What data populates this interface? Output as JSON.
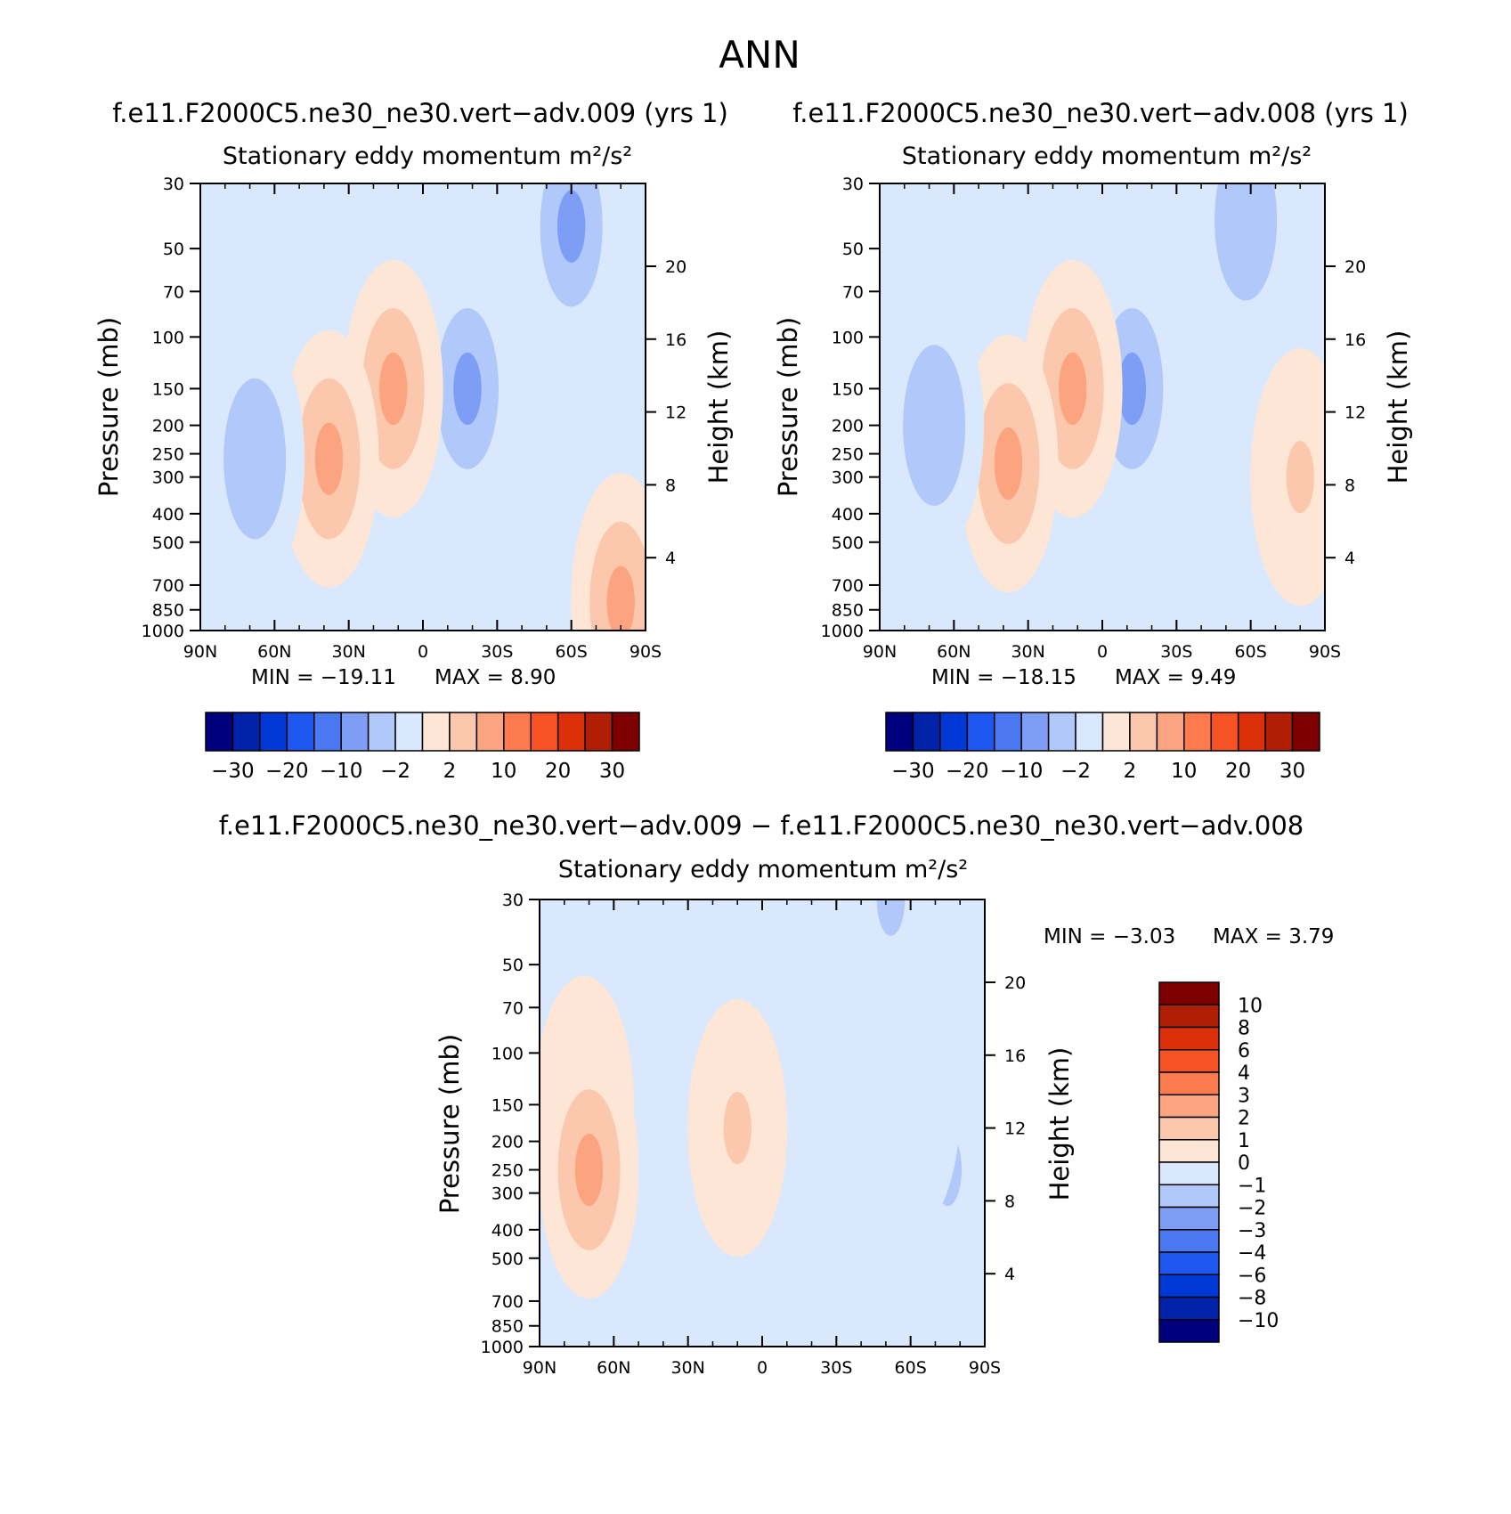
{
  "page_title": "ANN",
  "chart_data": [
    {
      "type": "heatmap",
      "panel_title": "f.e11.F2000C5.ne30_ne30.vert−adv.009 (yrs 1)",
      "subtitle": "Stationary eddy momentum  m²/s²",
      "xlabel": "",
      "ylabel": "Pressure (mb)",
      "y2label": "Height (km)",
      "x_ticks": [
        "90N",
        "60N",
        "30N",
        "0",
        "30S",
        "60S",
        "90S"
      ],
      "x_values": [
        90,
        60,
        30,
        0,
        -30,
        -60,
        -90
      ],
      "y_ticks": [
        "30",
        "50",
        "70",
        "100",
        "150",
        "200",
        "250",
        "300",
        "400",
        "500",
        "700",
        "850",
        "1000"
      ],
      "y_values": [
        30,
        50,
        70,
        100,
        150,
        200,
        250,
        300,
        400,
        500,
        700,
        850,
        1000
      ],
      "y_scale": "log",
      "ylim": [
        1000,
        30
      ],
      "y2_ticks": [
        "4",
        "8",
        "12",
        "16",
        "20"
      ],
      "y2_values": [
        4,
        8,
        12,
        16,
        20
      ],
      "min_label": "MIN =  −19.11",
      "max_label": "MAX =     8.90",
      "min": -19.11,
      "max": 8.9,
      "colorbar": {
        "orientation": "horizontal",
        "tick_labels": [
          "−30",
          "−20",
          "−10",
          "−2",
          "2",
          "10",
          "20",
          "30"
        ],
        "levels": [
          -35,
          -30,
          -25,
          -20,
          -15,
          -10,
          -5,
          -2,
          0,
          2,
          5,
          10,
          15,
          20,
          25,
          30,
          35
        ],
        "colors": [
          "#00007e",
          "#0022a8",
          "#0038d6",
          "#1e56f0",
          "#4a78f0",
          "#7e9ef5",
          "#b0c8fa",
          "#d9e8fc",
          "#fde6d6",
          "#fcc8ad",
          "#fba47f",
          "#fb7b4e",
          "#f65224",
          "#dc300a",
          "#b01e04",
          "#7e0000"
        ]
      },
      "features": [
        {
          "lat": -60,
          "p": 42,
          "value": -10
        },
        {
          "lat": -18,
          "p": 150,
          "value": -10
        },
        {
          "lat": 12,
          "p": 150,
          "value": 5
        },
        {
          "lat": 38,
          "p": 260,
          "value": 5
        },
        {
          "lat": 68,
          "p": 260,
          "value": -5
        },
        {
          "lat": -80,
          "p": 800,
          "value": 5
        }
      ]
    },
    {
      "type": "heatmap",
      "panel_title": "f.e11.F2000C5.ne30_ne30.vert−adv.008 (yrs 1)",
      "subtitle": "Stationary eddy momentum  m²/s²",
      "xlabel": "",
      "ylabel": "Pressure (mb)",
      "y2label": "Height (km)",
      "x_ticks": [
        "90N",
        "60N",
        "30N",
        "0",
        "30S",
        "60S",
        "90S"
      ],
      "x_values": [
        90,
        60,
        30,
        0,
        -30,
        -60,
        -90
      ],
      "y_ticks": [
        "30",
        "50",
        "70",
        "100",
        "150",
        "200",
        "250",
        "300",
        "400",
        "500",
        "700",
        "850",
        "1000"
      ],
      "y_values": [
        30,
        50,
        70,
        100,
        150,
        200,
        250,
        300,
        400,
        500,
        700,
        850,
        1000
      ],
      "y_scale": "log",
      "ylim": [
        1000,
        30
      ],
      "y2_ticks": [
        "4",
        "8",
        "12",
        "16",
        "20"
      ],
      "y2_values": [
        4,
        8,
        12,
        16,
        20
      ],
      "min_label": "MIN =  −18.15",
      "max_label": "MAX =     9.49",
      "min": -18.15,
      "max": 9.49,
      "colorbar": {
        "orientation": "horizontal",
        "tick_labels": [
          "−30",
          "−20",
          "−10",
          "−2",
          "2",
          "10",
          "20",
          "30"
        ],
        "levels": [
          -35,
          -30,
          -25,
          -20,
          -15,
          -10,
          -5,
          -2,
          0,
          2,
          5,
          10,
          15,
          20,
          25,
          30,
          35
        ],
        "colors": [
          "#00007e",
          "#0022a8",
          "#0038d6",
          "#1e56f0",
          "#4a78f0",
          "#7e9ef5",
          "#b0c8fa",
          "#d9e8fc",
          "#fde6d6",
          "#fcc8ad",
          "#fba47f",
          "#fb7b4e",
          "#f65224",
          "#dc300a",
          "#b01e04",
          "#7e0000"
        ]
      },
      "features": [
        {
          "lat": -58,
          "p": 40,
          "value": -5
        },
        {
          "lat": -12,
          "p": 150,
          "value": -10
        },
        {
          "lat": 12,
          "p": 150,
          "value": 5
        },
        {
          "lat": 38,
          "p": 270,
          "value": 5
        },
        {
          "lat": 68,
          "p": 200,
          "value": -5
        },
        {
          "lat": -80,
          "p": 300,
          "value": 2
        }
      ]
    },
    {
      "type": "heatmap",
      "panel_title": "f.e11.F2000C5.ne30_ne30.vert−adv.009 − f.e11.F2000C5.ne30_ne30.vert−adv.008",
      "subtitle": "Stationary eddy momentum  m²/s²",
      "xlabel": "",
      "ylabel": "Pressure (mb)",
      "y2label": "Height (km)",
      "x_ticks": [
        "90N",
        "60N",
        "30N",
        "0",
        "30S",
        "60S",
        "90S"
      ],
      "x_values": [
        90,
        60,
        30,
        0,
        -30,
        -60,
        -90
      ],
      "y_ticks": [
        "30",
        "50",
        "70",
        "100",
        "150",
        "200",
        "250",
        "300",
        "400",
        "500",
        "700",
        "850",
        "1000"
      ],
      "y_values": [
        30,
        50,
        70,
        100,
        150,
        200,
        250,
        300,
        400,
        500,
        700,
        850,
        1000
      ],
      "y_scale": "log",
      "ylim": [
        1000,
        30
      ],
      "y2_ticks": [
        "4",
        "8",
        "12",
        "16",
        "20"
      ],
      "y2_values": [
        4,
        8,
        12,
        16,
        20
      ],
      "min_label": "MIN =     −3.03",
      "max_label": "MAX =      3.79",
      "min": -3.03,
      "max": 3.79,
      "colorbar": {
        "orientation": "vertical",
        "tick_labels": [
          "10",
          "8",
          "6",
          "4",
          "3",
          "2",
          "1",
          "0",
          "−1",
          "−2",
          "−3",
          "−4",
          "−6",
          "−8",
          "−10"
        ],
        "levels": [
          12,
          10,
          8,
          6,
          4,
          3,
          2,
          1,
          0,
          -1,
          -2,
          -3,
          -4,
          -6,
          -8,
          -10,
          -12
        ],
        "colors": [
          "#7e0000",
          "#b01e04",
          "#dc300a",
          "#f65224",
          "#fb7b4e",
          "#fba47f",
          "#fcc8ad",
          "#fde6d6",
          "#d9e8fc",
          "#b0c8fa",
          "#7e9ef5",
          "#4a78f0",
          "#1e56f0",
          "#0038d6",
          "#0022a8",
          "#00007e"
        ]
      },
      "features": [
        {
          "lat": 72,
          "p": 150,
          "value": 1
        },
        {
          "lat": 70,
          "p": 250,
          "value": 2
        },
        {
          "lat": 30,
          "p": 250,
          "value": -1
        },
        {
          "lat": 10,
          "p": 180,
          "value": 1
        },
        {
          "lat": -52,
          "p": 30,
          "value": -2
        },
        {
          "lat": -75,
          "p": 250,
          "value": -2
        },
        {
          "lat": -60,
          "p": 150,
          "value": -1
        }
      ]
    }
  ]
}
